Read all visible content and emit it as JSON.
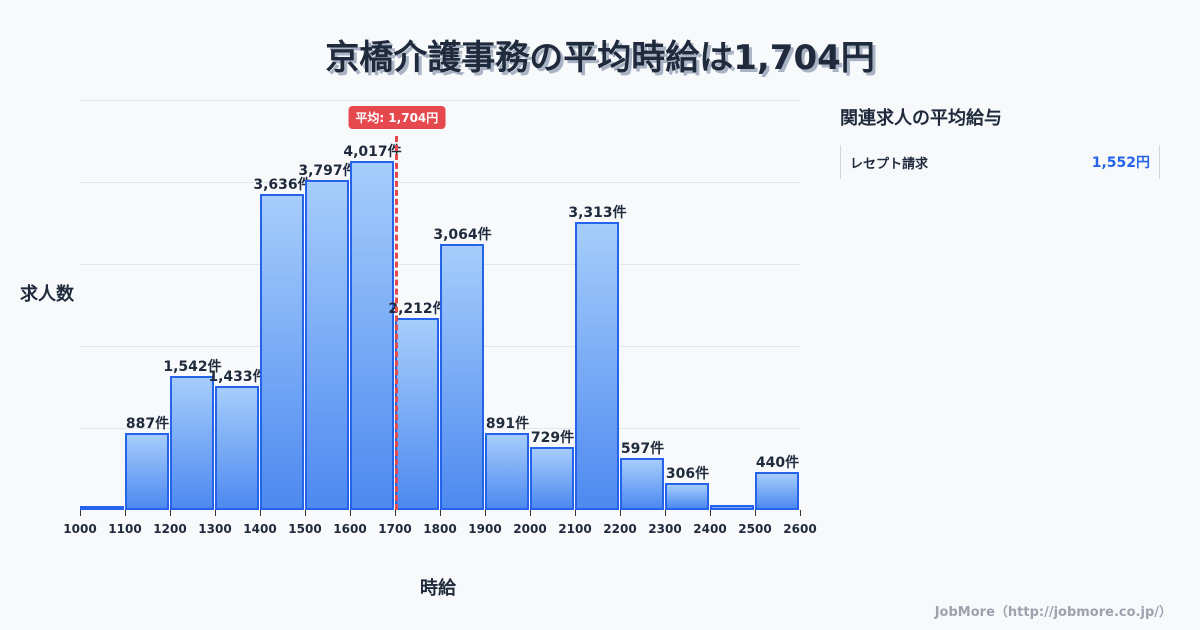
{
  "title": "京橋介護事務の平均時給は1,704円",
  "chart_data": {
    "type": "bar",
    "title": "京橋介護事務の平均時給は1,704円",
    "xlabel": "時給",
    "ylabel": "求人数",
    "categories": [
      "1000-1100",
      "1100-1200",
      "1200-1300",
      "1300-1400",
      "1400-1500",
      "1500-1600",
      "1600-1700",
      "1700-1800",
      "1800-1900",
      "1900-2000",
      "2000-2100",
      "2100-2200",
      "2200-2300",
      "2300-2400",
      "2400-2500",
      "2500-2600"
    ],
    "values": [
      20,
      887,
      1542,
      1433,
      3636,
      3797,
      4017,
      2212,
      3064,
      891,
      729,
      3313,
      597,
      306,
      55,
      440
    ],
    "value_labels": [
      "",
      "887件",
      "1,542件",
      "1,433件",
      "3,636件",
      "3,797件",
      "4,017件",
      "2,212件",
      "3,064件",
      "891件",
      "729件",
      "3,313件",
      "597件",
      "306件",
      "",
      "440件"
    ],
    "x_ticks": [
      "1000",
      "1100",
      "1200",
      "1300",
      "1400",
      "1500",
      "1600",
      "1700",
      "1800",
      "1900",
      "2000",
      "2100",
      "2200",
      "2300",
      "2400",
      "2500",
      "2600"
    ],
    "xlim": [
      1000,
      2600
    ],
    "ylim": [
      0,
      4720
    ],
    "grid": true,
    "average": {
      "value": 1704,
      "label": "平均: 1,704円"
    },
    "colors": {
      "bar_fill_top": "#a6cdfb",
      "bar_fill_bottom": "#4d89f0",
      "bar_border": "#2563eb",
      "average_line": "#e5484d"
    }
  },
  "sidebar": {
    "title": "関連求人の平均給与",
    "items": [
      {
        "name": "レセプト請求",
        "value": "1,552円"
      }
    ]
  },
  "footer": "JobMore（http://jobmore.co.jp/）"
}
